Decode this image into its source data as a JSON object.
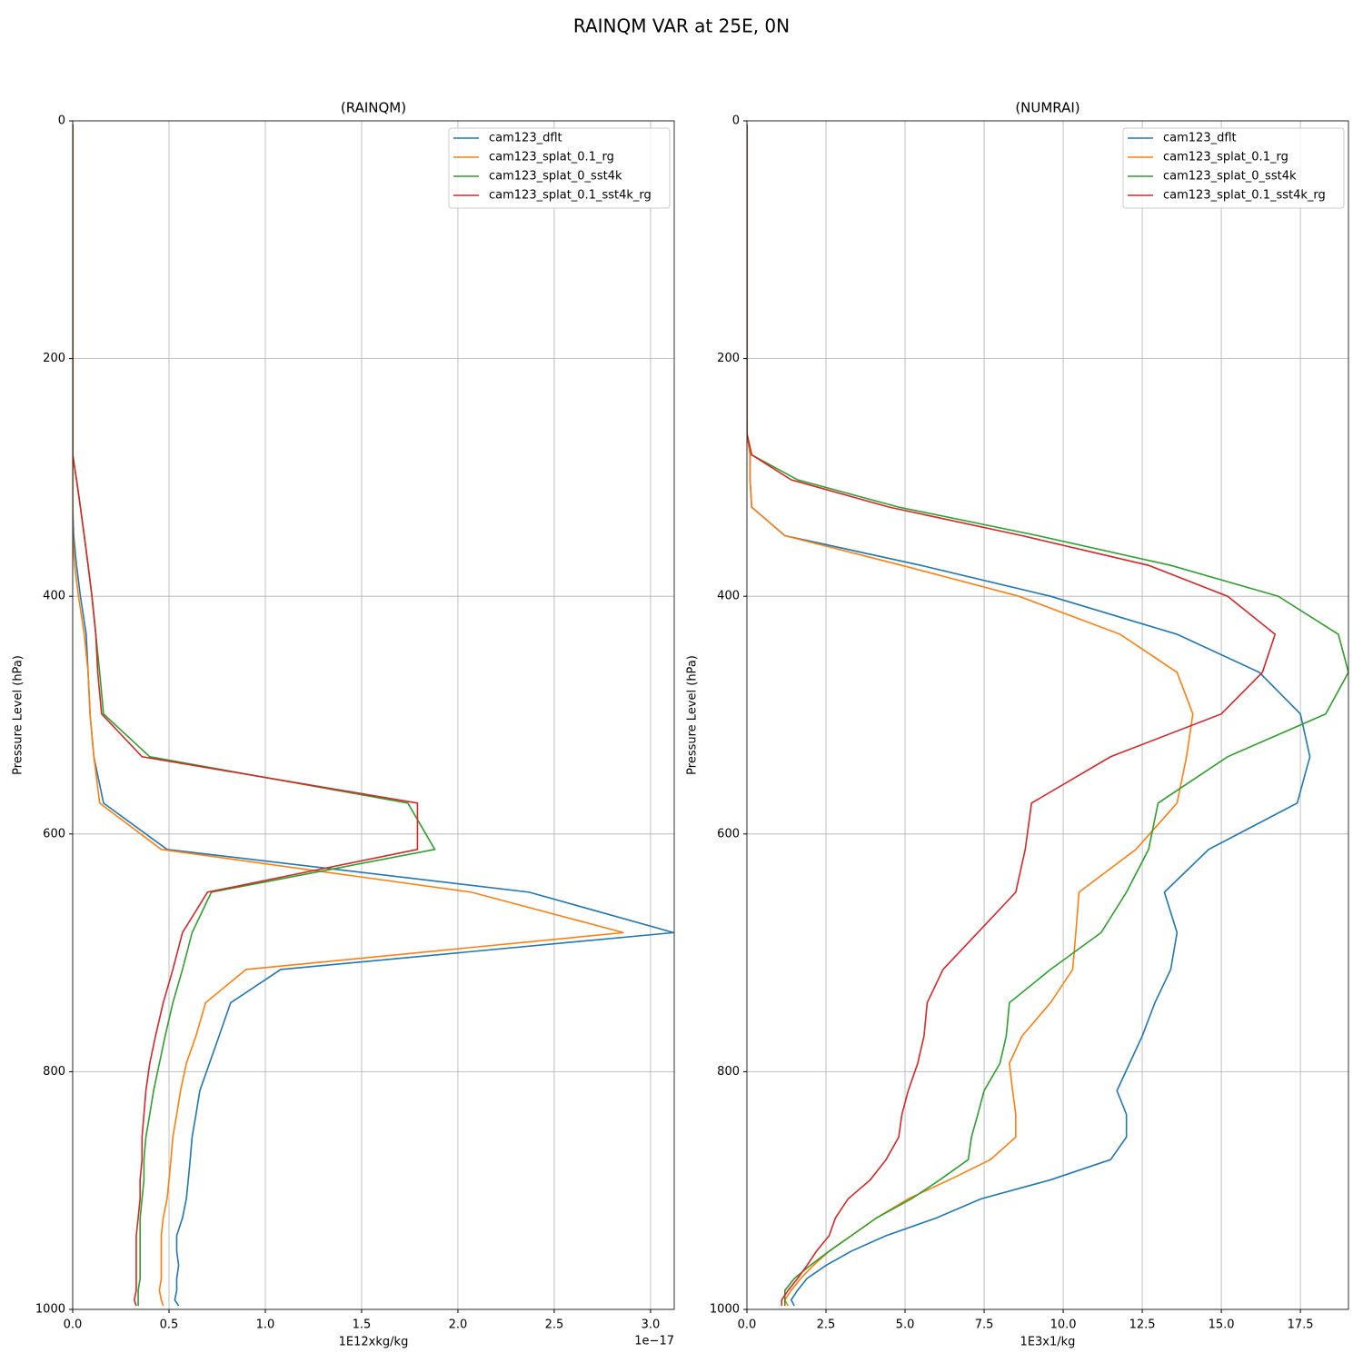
{
  "title": "RAINQM VAR at 25E, 0N",
  "chart_data": [
    {
      "type": "line",
      "title": "(RAINQM)",
      "xlabel": "1E12xkg/kg",
      "ylabel": "Pressure Level (hPa)",
      "x_offset_label": "1e−17",
      "levels": [
        3,
        50,
        100,
        150,
        200,
        240,
        263,
        281,
        302,
        325,
        349,
        374,
        400,
        432,
        464,
        499,
        535,
        574,
        613,
        649,
        683,
        714,
        742,
        770,
        793,
        816,
        836,
        855,
        874,
        891,
        907,
        923,
        938,
        951,
        963,
        974,
        984,
        992,
        997
      ],
      "xlim": [
        0,
        3.123
      ],
      "ylim": [
        1000,
        0
      ],
      "xticks": [
        {
          "value": 0,
          "label": "0.0"
        },
        0.5,
        {
          "value": 1,
          "label": "1.0"
        },
        1.5,
        {
          "value": 2,
          "label": "2.0"
        },
        2.5,
        {
          "value": 3,
          "label": "3.0"
        }
      ],
      "yticks": [
        0,
        200,
        400,
        600,
        800,
        1000
      ],
      "grid": true,
      "legend": "upper right",
      "series": [
        {
          "name": "cam123_dflt",
          "color": "#1f77b4",
          "values": [
            0,
            0,
            0,
            0,
            0,
            0,
            0,
            0,
            0,
            0,
            0.005,
            0.02,
            0.04,
            0.07,
            0.08,
            0.09,
            0.11,
            0.16,
            0.49,
            2.37,
            3.12,
            1.08,
            0.82,
            0.76,
            0.71,
            0.66,
            0.64,
            0.62,
            0.61,
            0.6,
            0.59,
            0.57,
            0.54,
            0.54,
            0.55,
            0.54,
            0.54,
            0.53,
            0.55
          ]
        },
        {
          "name": "cam123_splat_0.1_rg",
          "color": "#ff7f0e",
          "values": [
            0,
            0,
            0,
            0,
            0,
            0,
            0,
            0,
            0,
            0,
            0,
            0.01,
            0.03,
            0.06,
            0.08,
            0.09,
            0.11,
            0.14,
            0.46,
            2.07,
            2.86,
            0.9,
            0.69,
            0.64,
            0.59,
            0.56,
            0.54,
            0.52,
            0.51,
            0.5,
            0.49,
            0.47,
            0.46,
            0.46,
            0.46,
            0.46,
            0.45,
            0.46,
            0.47
          ]
        },
        {
          "name": "cam123_splat_0_sst4k",
          "color": "#2ca02c",
          "values": [
            0,
            0,
            0,
            0,
            0,
            0,
            0,
            0,
            0.02,
            0.04,
            0.06,
            0.08,
            0.1,
            0.12,
            0.14,
            0.16,
            0.4,
            1.74,
            1.88,
            0.72,
            0.62,
            0.57,
            0.52,
            0.48,
            0.45,
            0.42,
            0.4,
            0.38,
            0.37,
            0.37,
            0.36,
            0.35,
            0.35,
            0.35,
            0.35,
            0.35,
            0.34,
            0.34,
            0.34
          ]
        },
        {
          "name": "cam123_splat_0.1_sst4k_rg",
          "color": "#d62728",
          "values": [
            0,
            0,
            0,
            0,
            0,
            0,
            0,
            0,
            0.02,
            0.04,
            0.06,
            0.08,
            0.1,
            0.12,
            0.13,
            0.15,
            0.36,
            1.79,
            1.79,
            0.7,
            0.57,
            0.52,
            0.47,
            0.43,
            0.4,
            0.38,
            0.37,
            0.36,
            0.36,
            0.35,
            0.35,
            0.34,
            0.33,
            0.33,
            0.33,
            0.33,
            0.33,
            0.32,
            0.33
          ]
        }
      ]
    },
    {
      "type": "line",
      "title": "(NUMRAI)",
      "xlabel": "1E3x1/kg",
      "ylabel": "Pressure Level (hPa)",
      "levels": [
        3,
        50,
        100,
        150,
        200,
        240,
        263,
        281,
        302,
        325,
        349,
        374,
        400,
        432,
        464,
        499,
        535,
        574,
        613,
        649,
        683,
        714,
        742,
        770,
        793,
        816,
        836,
        855,
        874,
        891,
        907,
        923,
        938,
        951,
        963,
        974,
        984,
        992,
        997
      ],
      "xlim": [
        0,
        19.02
      ],
      "ylim": [
        1000,
        0
      ],
      "xticks": [
        {
          "value": 0,
          "label": "0.0"
        },
        2.5,
        {
          "value": 5,
          "label": "5.0"
        },
        7.5,
        {
          "value": 10,
          "label": "10.0"
        },
        12.5,
        {
          "value": 15,
          "label": "15.0"
        },
        17.5
      ],
      "yticks": [
        0,
        200,
        400,
        600,
        800,
        1000
      ],
      "grid": true,
      "legend": "upper right",
      "series": [
        {
          "name": "cam123_dflt",
          "color": "#1f77b4",
          "values": [
            0,
            0,
            0,
            0,
            0,
            0,
            0,
            0.1,
            0.1,
            0.15,
            1.2,
            5.5,
            9.6,
            13.6,
            16.2,
            17.5,
            17.8,
            17.4,
            14.6,
            13.2,
            13.6,
            13.4,
            12.9,
            12.5,
            12.1,
            11.7,
            12.0,
            12.0,
            11.5,
            9.6,
            7.4,
            6.0,
            4.4,
            3.3,
            2.5,
            1.9,
            1.6,
            1.4,
            1.5
          ]
        },
        {
          "name": "cam123_splat_0.1_rg",
          "color": "#ff7f0e",
          "values": [
            0,
            0,
            0,
            0,
            0,
            0,
            0,
            0.1,
            0.1,
            0.15,
            1.2,
            4.9,
            8.6,
            11.8,
            13.6,
            14.1,
            13.9,
            13.6,
            12.3,
            10.5,
            10.4,
            10.3,
            9.6,
            8.7,
            8.3,
            8.4,
            8.5,
            8.5,
            7.7,
            6.4,
            5.1,
            4.1,
            3.3,
            2.6,
            2.1,
            1.7,
            1.4,
            1.2,
            1.3
          ]
        },
        {
          "name": "cam123_splat_0_sst4k",
          "color": "#2ca02c",
          "values": [
            0,
            0,
            0,
            0,
            0,
            0,
            0,
            0.15,
            1.6,
            4.8,
            9.2,
            13.4,
            16.8,
            18.7,
            19.02,
            18.3,
            15.2,
            13.0,
            12.7,
            12.0,
            11.2,
            9.6,
            8.3,
            8.2,
            8.0,
            7.5,
            7.3,
            7.1,
            7.0,
            6.1,
            5.2,
            4.1,
            3.3,
            2.6,
            2.0,
            1.5,
            1.2,
            1.2,
            1.2
          ]
        },
        {
          "name": "cam123_splat_0.1_sst4k_rg",
          "color": "#d62728",
          "values": [
            0,
            0,
            0,
            0,
            0,
            0,
            0,
            0.15,
            1.4,
            4.5,
            8.7,
            12.7,
            15.2,
            16.7,
            16.3,
            15.0,
            11.5,
            9.0,
            8.8,
            8.5,
            7.3,
            6.2,
            5.7,
            5.6,
            5.4,
            5.1,
            4.9,
            4.8,
            4.4,
            3.9,
            3.2,
            2.8,
            2.6,
            2.2,
            1.9,
            1.6,
            1.3,
            1.1,
            1.1
          ]
        }
      ]
    }
  ]
}
